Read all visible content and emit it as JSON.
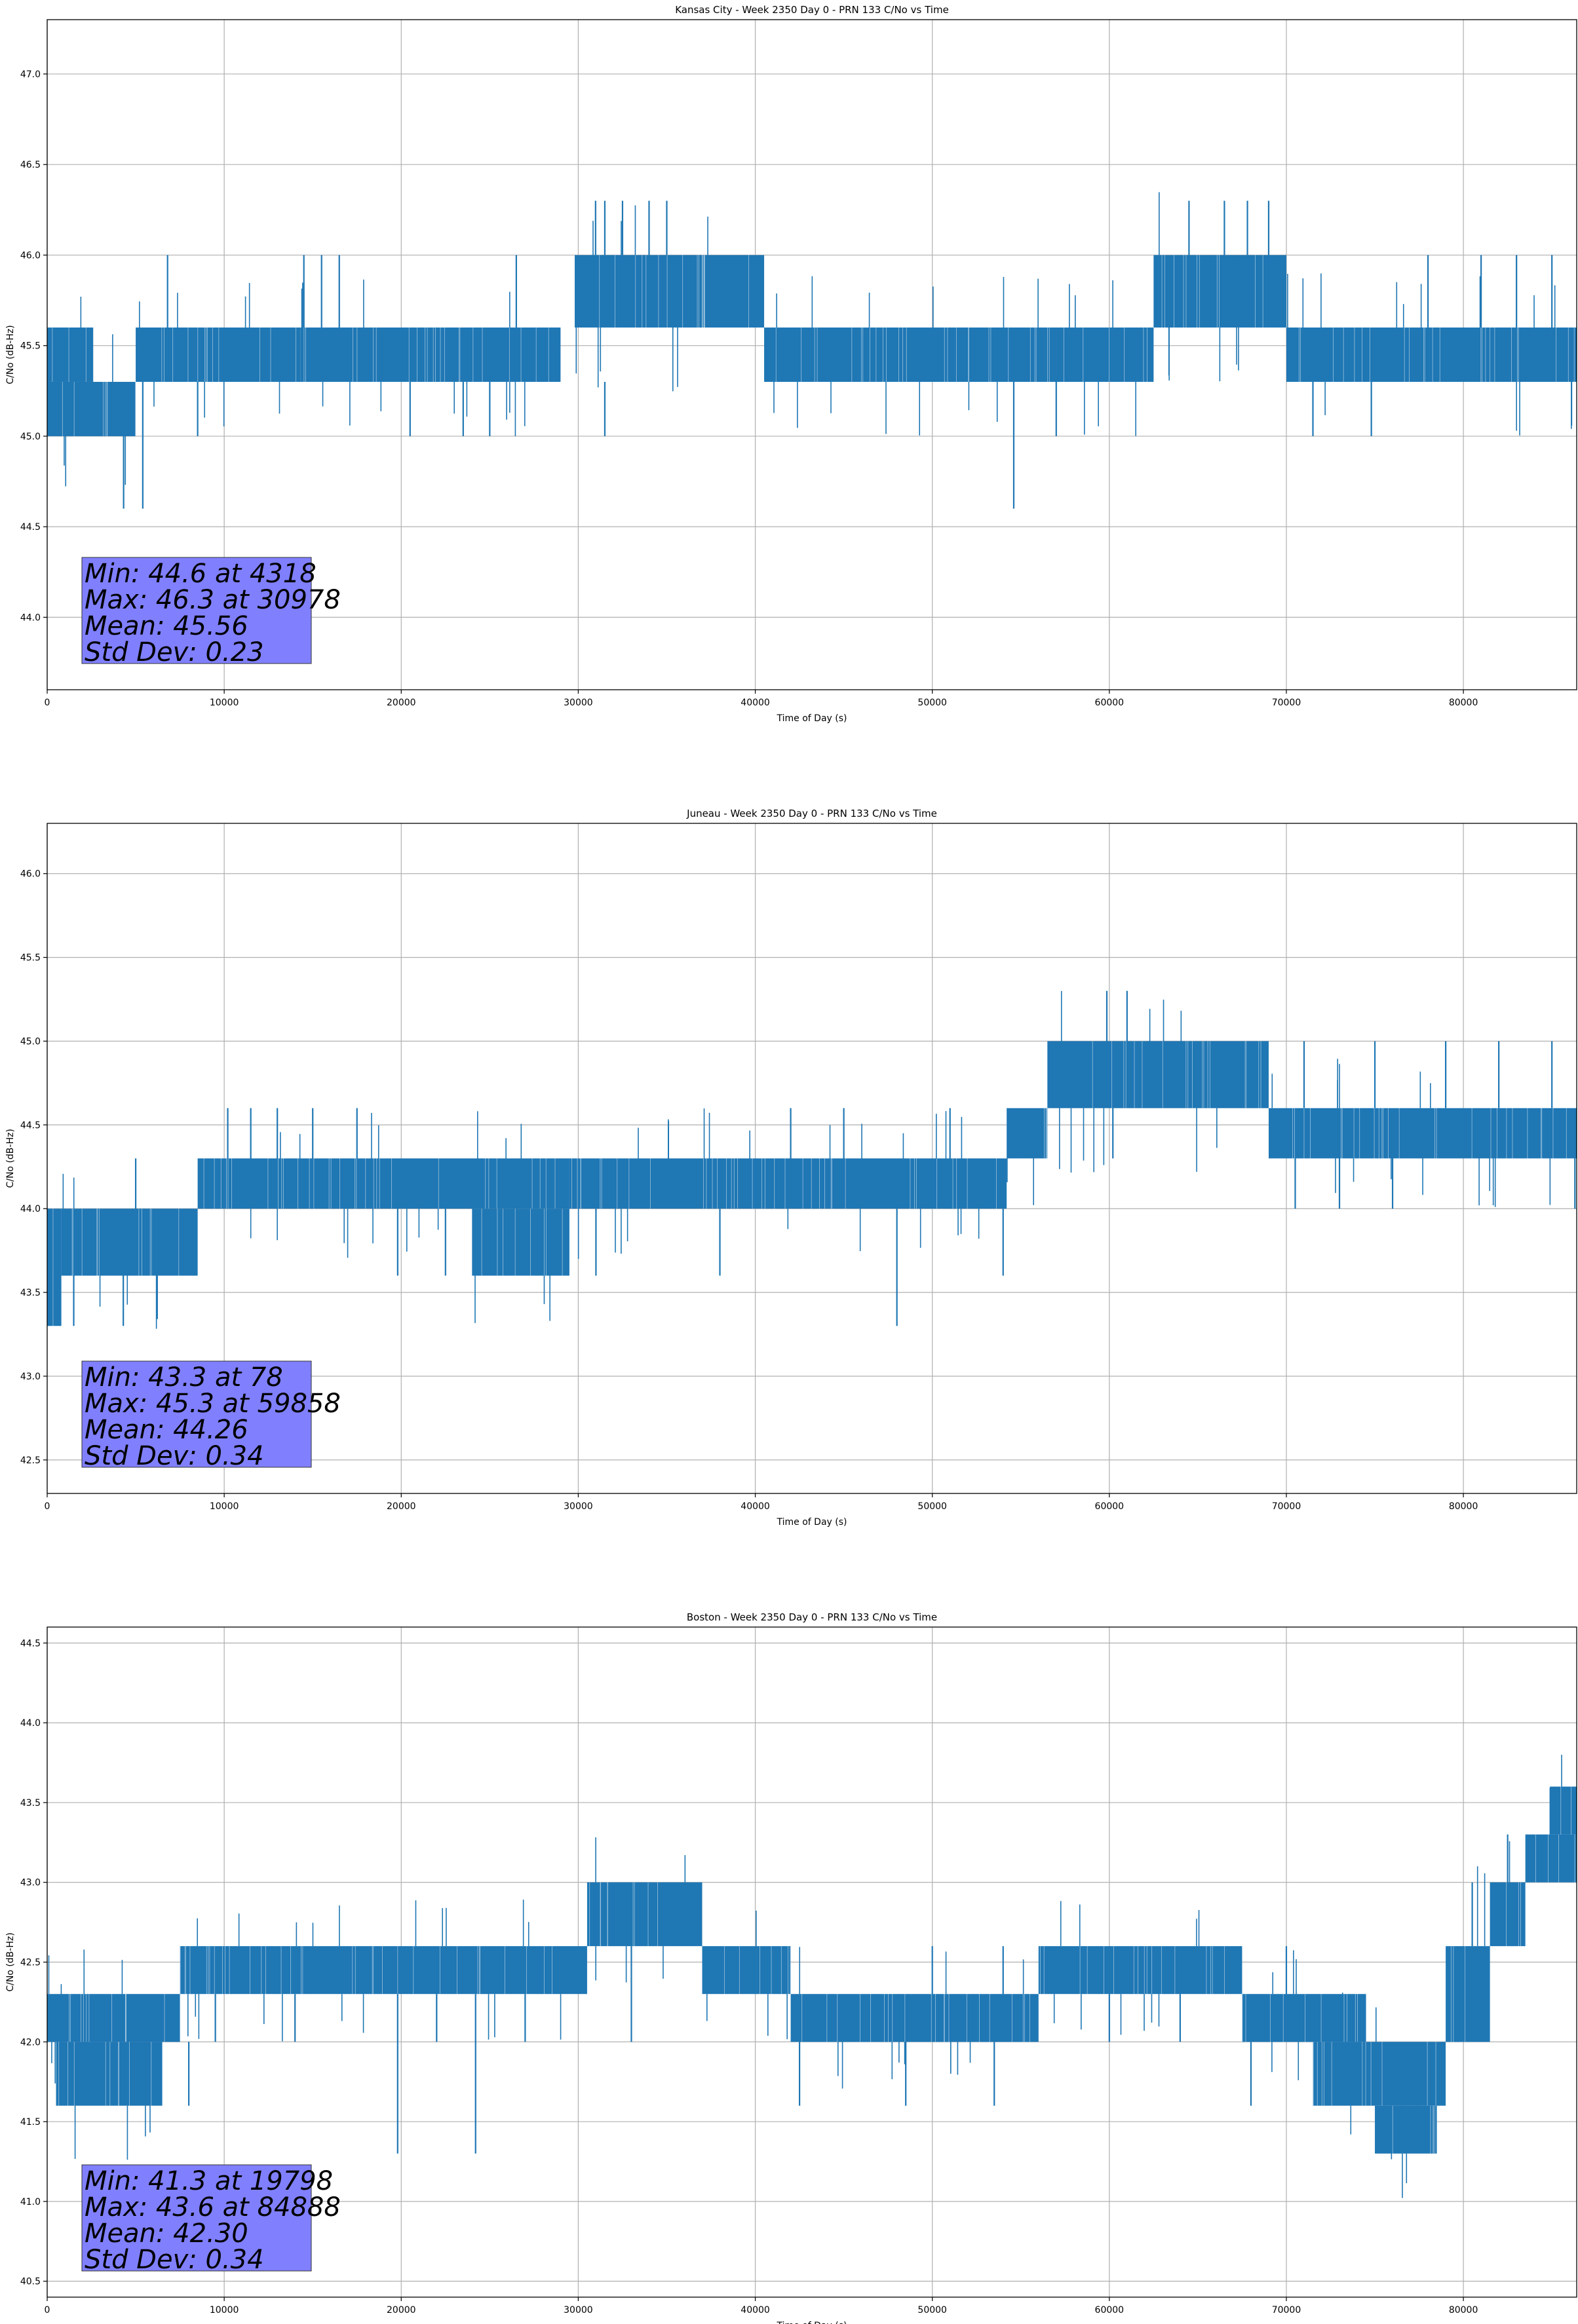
{
  "colors": {
    "series": "#1f77b4",
    "stats_box": "#8080ff",
    "grid": "#b0b0b0"
  },
  "chart_data": [
    {
      "type": "line",
      "title": "Kansas City - Week 2350 Day 0 - PRN 133 C/No vs Time",
      "xlabel": "Time of Day (s)",
      "ylabel": "C/No (dB-Hz)",
      "xlim": [
        0,
        86400
      ],
      "ylim": [
        43.6,
        47.3
      ],
      "xticks": [
        0,
        10000,
        20000,
        30000,
        40000,
        50000,
        60000,
        70000,
        80000
      ],
      "xtick_labels": [
        "0",
        "10000",
        "20000",
        "30000",
        "40000",
        "50000",
        "60000",
        "70000",
        "80000"
      ],
      "yticks": [
        44.0,
        44.5,
        45.0,
        45.5,
        46.0,
        46.5,
        47.0
      ],
      "ytick_labels": [
        "44.0",
        "44.5",
        "45.0",
        "45.5",
        "46.0",
        "46.5",
        "47.0"
      ],
      "grid": true,
      "stats_lines": [
        "Min: 44.6 at 4318",
        "Max: 46.3 at 30978",
        "Mean: 45.56",
        "Std Dev: 0.23"
      ],
      "bands": [
        {
          "x0": 0,
          "x1": 5000,
          "y0": 45.0,
          "y1": 45.3
        },
        {
          "x0": 0,
          "x1": 2600,
          "y0": 45.3,
          "y1": 45.6
        },
        {
          "x0": 5000,
          "x1": 14300,
          "y0": 45.3,
          "y1": 45.6
        },
        {
          "x0": 14300,
          "x1": 29000,
          "y0": 45.3,
          "y1": 45.6
        },
        {
          "x0": 29800,
          "x1": 40500,
          "y0": 45.6,
          "y1": 46.0
        },
        {
          "x0": 40500,
          "x1": 62500,
          "y0": 45.3,
          "y1": 45.6
        },
        {
          "x0": 62500,
          "x1": 70000,
          "y0": 45.6,
          "y1": 46.0
        },
        {
          "x0": 70000,
          "x1": 86400,
          "y0": 45.3,
          "y1": 45.6
        }
      ],
      "spikes": [
        {
          "x": 4318,
          "y0": 44.6,
          "y1": 45.3
        },
        {
          "x": 5400,
          "y0": 44.6,
          "y1": 45.3
        },
        {
          "x": 6800,
          "y0": 45.6,
          "y1": 46.0
        },
        {
          "x": 8500,
          "y0": 45.0,
          "y1": 45.3
        },
        {
          "x": 14500,
          "y0": 45.6,
          "y1": 46.0
        },
        {
          "x": 15500,
          "y0": 45.6,
          "y1": 46.0
        },
        {
          "x": 16500,
          "y0": 45.6,
          "y1": 46.0
        },
        {
          "x": 20500,
          "y0": 45.0,
          "y1": 45.3
        },
        {
          "x": 23500,
          "y0": 45.0,
          "y1": 45.3
        },
        {
          "x": 25000,
          "y0": 45.0,
          "y1": 45.3
        },
        {
          "x": 26500,
          "y0": 45.6,
          "y1": 46.0
        },
        {
          "x": 30978,
          "y0": 46.0,
          "y1": 46.3
        },
        {
          "x": 31500,
          "y0": 46.0,
          "y1": 46.3
        },
        {
          "x": 32500,
          "y0": 46.0,
          "y1": 46.3
        },
        {
          "x": 34000,
          "y0": 46.0,
          "y1": 46.3
        },
        {
          "x": 35000,
          "y0": 46.0,
          "y1": 46.3
        },
        {
          "x": 31500,
          "y0": 45.0,
          "y1": 45.3
        },
        {
          "x": 54600,
          "y0": 44.6,
          "y1": 45.3
        },
        {
          "x": 57000,
          "y0": 45.0,
          "y1": 45.3
        },
        {
          "x": 64500,
          "y0": 46.0,
          "y1": 46.3
        },
        {
          "x": 66500,
          "y0": 46.0,
          "y1": 46.3
        },
        {
          "x": 67800,
          "y0": 46.0,
          "y1": 46.3
        },
        {
          "x": 69000,
          "y0": 46.0,
          "y1": 46.3
        },
        {
          "x": 71500,
          "y0": 45.0,
          "y1": 45.3
        },
        {
          "x": 74800,
          "y0": 45.0,
          "y1": 45.3
        },
        {
          "x": 78000,
          "y0": 45.6,
          "y1": 46.0
        },
        {
          "x": 81000,
          "y0": 45.6,
          "y1": 46.0
        },
        {
          "x": 83000,
          "y0": 45.6,
          "y1": 46.0
        },
        {
          "x": 85000,
          "y0": 45.6,
          "y1": 46.0
        }
      ]
    },
    {
      "type": "line",
      "title": "Juneau - Week 2350 Day 0 - PRN 133 C/No vs Time",
      "xlabel": "Time of Day (s)",
      "ylabel": "C/No (dB-Hz)",
      "xlim": [
        0,
        86400
      ],
      "ylim": [
        42.3,
        46.3
      ],
      "xticks": [
        0,
        10000,
        20000,
        30000,
        40000,
        50000,
        60000,
        70000,
        80000
      ],
      "xtick_labels": [
        "0",
        "10000",
        "20000",
        "30000",
        "40000",
        "50000",
        "60000",
        "70000",
        "80000"
      ],
      "yticks": [
        42.5,
        43.0,
        43.5,
        44.0,
        44.5,
        45.0,
        45.5,
        46.0
      ],
      "ytick_labels": [
        "42.5",
        "43.0",
        "43.5",
        "44.0",
        "44.5",
        "45.0",
        "45.5",
        "46.0"
      ],
      "grid": true,
      "stats_lines": [
        "Min: 43.3 at 78",
        "Max: 45.3 at 59858",
        "Mean: 44.26",
        "Std Dev: 0.34"
      ],
      "bands": [
        {
          "x0": 0,
          "x1": 800,
          "y0": 43.3,
          "y1": 44.0
        },
        {
          "x0": 800,
          "x1": 8500,
          "y0": 43.6,
          "y1": 44.0
        },
        {
          "x0": 8500,
          "x1": 29500,
          "y0": 44.0,
          "y1": 44.3
        },
        {
          "x0": 24000,
          "x1": 29500,
          "y0": 43.6,
          "y1": 44.0
        },
        {
          "x0": 29500,
          "x1": 54200,
          "y0": 44.0,
          "y1": 44.3
        },
        {
          "x0": 54200,
          "x1": 56500,
          "y0": 44.3,
          "y1": 44.6
        },
        {
          "x0": 56500,
          "x1": 69000,
          "y0": 44.6,
          "y1": 45.0
        },
        {
          "x0": 69000,
          "x1": 86400,
          "y0": 44.3,
          "y1": 44.6
        }
      ],
      "spikes": [
        {
          "x": 78,
          "y0": 43.3,
          "y1": 43.6
        },
        {
          "x": 1500,
          "y0": 43.3,
          "y1": 43.6
        },
        {
          "x": 4300,
          "y0": 43.3,
          "y1": 43.6
        },
        {
          "x": 5000,
          "y0": 44.0,
          "y1": 44.3
        },
        {
          "x": 10200,
          "y0": 44.3,
          "y1": 44.6
        },
        {
          "x": 11500,
          "y0": 44.3,
          "y1": 44.6
        },
        {
          "x": 13000,
          "y0": 44.3,
          "y1": 44.6
        },
        {
          "x": 15000,
          "y0": 44.3,
          "y1": 44.6
        },
        {
          "x": 17500,
          "y0": 44.3,
          "y1": 44.6
        },
        {
          "x": 19800,
          "y0": 43.6,
          "y1": 44.0
        },
        {
          "x": 22500,
          "y0": 43.6,
          "y1": 44.0
        },
        {
          "x": 31000,
          "y0": 43.6,
          "y1": 44.0
        },
        {
          "x": 38000,
          "y0": 43.6,
          "y1": 44.0
        },
        {
          "x": 42000,
          "y0": 44.3,
          "y1": 44.6
        },
        {
          "x": 45000,
          "y0": 44.3,
          "y1": 44.6
        },
        {
          "x": 48000,
          "y0": 43.3,
          "y1": 44.0
        },
        {
          "x": 51000,
          "y0": 44.3,
          "y1": 44.6
        },
        {
          "x": 54000,
          "y0": 43.6,
          "y1": 44.0
        },
        {
          "x": 59858,
          "y0": 45.0,
          "y1": 45.3
        },
        {
          "x": 61000,
          "y0": 45.0,
          "y1": 45.3
        },
        {
          "x": 60200,
          "y0": 44.3,
          "y1": 44.6
        },
        {
          "x": 70500,
          "y0": 44.0,
          "y1": 44.3
        },
        {
          "x": 73000,
          "y0": 44.0,
          "y1": 44.3
        },
        {
          "x": 76000,
          "y0": 44.0,
          "y1": 44.3
        },
        {
          "x": 71000,
          "y0": 44.6,
          "y1": 45.0
        },
        {
          "x": 75000,
          "y0": 44.6,
          "y1": 45.0
        },
        {
          "x": 79000,
          "y0": 44.6,
          "y1": 45.0
        },
        {
          "x": 82000,
          "y0": 44.6,
          "y1": 45.0
        },
        {
          "x": 85000,
          "y0": 44.6,
          "y1": 45.0
        },
        {
          "x": 86300,
          "y0": 44.0,
          "y1": 44.3
        }
      ]
    },
    {
      "type": "line",
      "title": "Boston - Week 2350 Day 0 - PRN 133 C/No vs Time",
      "xlabel": "Time of Day (s)",
      "ylabel": "C/No (dB-Hz)",
      "xlim": [
        0,
        86400
      ],
      "ylim": [
        40.4,
        44.6
      ],
      "xticks": [
        0,
        10000,
        20000,
        30000,
        40000,
        50000,
        60000,
        70000,
        80000
      ],
      "xtick_labels": [
        "0",
        "10000",
        "20000",
        "30000",
        "40000",
        "50000",
        "60000",
        "70000",
        "80000"
      ],
      "yticks": [
        40.5,
        41.0,
        41.5,
        42.0,
        42.5,
        43.0,
        43.5,
        44.0,
        44.5
      ],
      "ytick_labels": [
        "40.5",
        "41.0",
        "41.5",
        "42.0",
        "42.5",
        "43.0",
        "43.5",
        "44.0",
        "44.5"
      ],
      "grid": true,
      "stats_lines": [
        "Min: 41.3 at 19798",
        "Max: 43.6 at 84888",
        "Mean: 42.30",
        "Std Dev: 0.34"
      ],
      "bands": [
        {
          "x0": 0,
          "x1": 7500,
          "y0": 42.0,
          "y1": 42.3
        },
        {
          "x0": 500,
          "x1": 6500,
          "y0": 41.6,
          "y1": 42.0
        },
        {
          "x0": 7500,
          "x1": 30500,
          "y0": 42.3,
          "y1": 42.6
        },
        {
          "x0": 30500,
          "x1": 37000,
          "y0": 42.6,
          "y1": 43.0
        },
        {
          "x0": 37000,
          "x1": 42000,
          "y0": 42.3,
          "y1": 42.6
        },
        {
          "x0": 42000,
          "x1": 56000,
          "y0": 42.0,
          "y1": 42.3
        },
        {
          "x0": 56000,
          "x1": 67500,
          "y0": 42.3,
          "y1": 42.6
        },
        {
          "x0": 67500,
          "x1": 74500,
          "y0": 42.0,
          "y1": 42.3
        },
        {
          "x0": 71500,
          "x1": 79000,
          "y0": 41.6,
          "y1": 42.0
        },
        {
          "x0": 75000,
          "x1": 78500,
          "y0": 41.3,
          "y1": 41.6
        },
        {
          "x0": 79000,
          "x1": 81500,
          "y0": 42.0,
          "y1": 42.6
        },
        {
          "x0": 81500,
          "x1": 83500,
          "y0": 42.6,
          "y1": 43.0
        },
        {
          "x0": 83500,
          "x1": 86400,
          "y0": 43.0,
          "y1": 43.3
        },
        {
          "x0": 84888,
          "x1": 86400,
          "y0": 43.3,
          "y1": 43.6
        }
      ],
      "spikes": [
        {
          "x": 8000,
          "y0": 41.6,
          "y1": 42.0
        },
        {
          "x": 9500,
          "y0": 42.0,
          "y1": 42.3
        },
        {
          "x": 14000,
          "y0": 42.0,
          "y1": 42.3
        },
        {
          "x": 19798,
          "y0": 41.3,
          "y1": 42.3
        },
        {
          "x": 22000,
          "y0": 42.0,
          "y1": 42.3
        },
        {
          "x": 24200,
          "y0": 41.3,
          "y1": 42.3
        },
        {
          "x": 27000,
          "y0": 42.0,
          "y1": 42.3
        },
        {
          "x": 33000,
          "y0": 42.0,
          "y1": 42.6
        },
        {
          "x": 42500,
          "y0": 41.6,
          "y1": 42.0
        },
        {
          "x": 48500,
          "y0": 41.6,
          "y1": 42.0
        },
        {
          "x": 50000,
          "y0": 42.3,
          "y1": 42.6
        },
        {
          "x": 53500,
          "y0": 41.6,
          "y1": 42.0
        },
        {
          "x": 54000,
          "y0": 42.3,
          "y1": 42.6
        },
        {
          "x": 60000,
          "y0": 42.0,
          "y1": 42.3
        },
        {
          "x": 64000,
          "y0": 42.0,
          "y1": 42.3
        },
        {
          "x": 68000,
          "y0": 41.6,
          "y1": 42.0
        },
        {
          "x": 70000,
          "y0": 42.3,
          "y1": 42.6
        },
        {
          "x": 80500,
          "y0": 42.6,
          "y1": 43.0
        },
        {
          "x": 82500,
          "y0": 43.0,
          "y1": 43.3
        }
      ]
    }
  ]
}
